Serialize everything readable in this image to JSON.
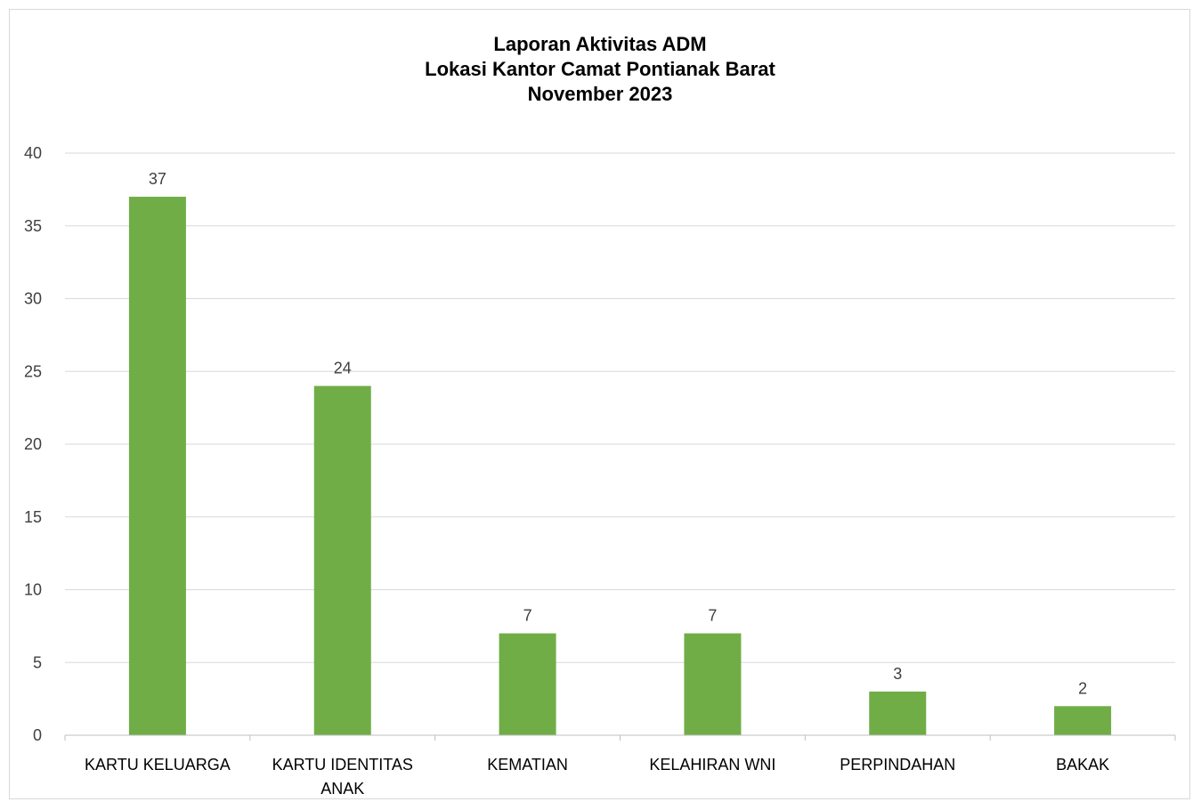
{
  "chart_data": {
    "type": "bar",
    "title_lines": [
      "Laporan Aktivitas ADM",
      "Lokasi Kantor Camat Pontianak Barat",
      "November 2023"
    ],
    "categories": [
      [
        "KARTU KELUARGA"
      ],
      [
        "KARTU IDENTITAS",
        "ANAK"
      ],
      [
        "KEMATIAN"
      ],
      [
        "KELAHIRAN WNI"
      ],
      [
        "PERPINDAHAN"
      ],
      [
        "BAKAK"
      ]
    ],
    "values": [
      37,
      24,
      7,
      7,
      3,
      2
    ],
    "data_labels": [
      "37",
      "24",
      "7",
      "7",
      "3",
      "2"
    ],
    "ylim": [
      0,
      40
    ],
    "yticks": [
      0,
      5,
      10,
      15,
      20,
      25,
      30,
      35,
      40
    ],
    "xlabel": "",
    "ylabel": "",
    "grid": true,
    "legend": "none",
    "colors": {
      "bar": "#70ad47",
      "grid": "#d9d9d9",
      "axis": "#bfbfbf"
    }
  }
}
